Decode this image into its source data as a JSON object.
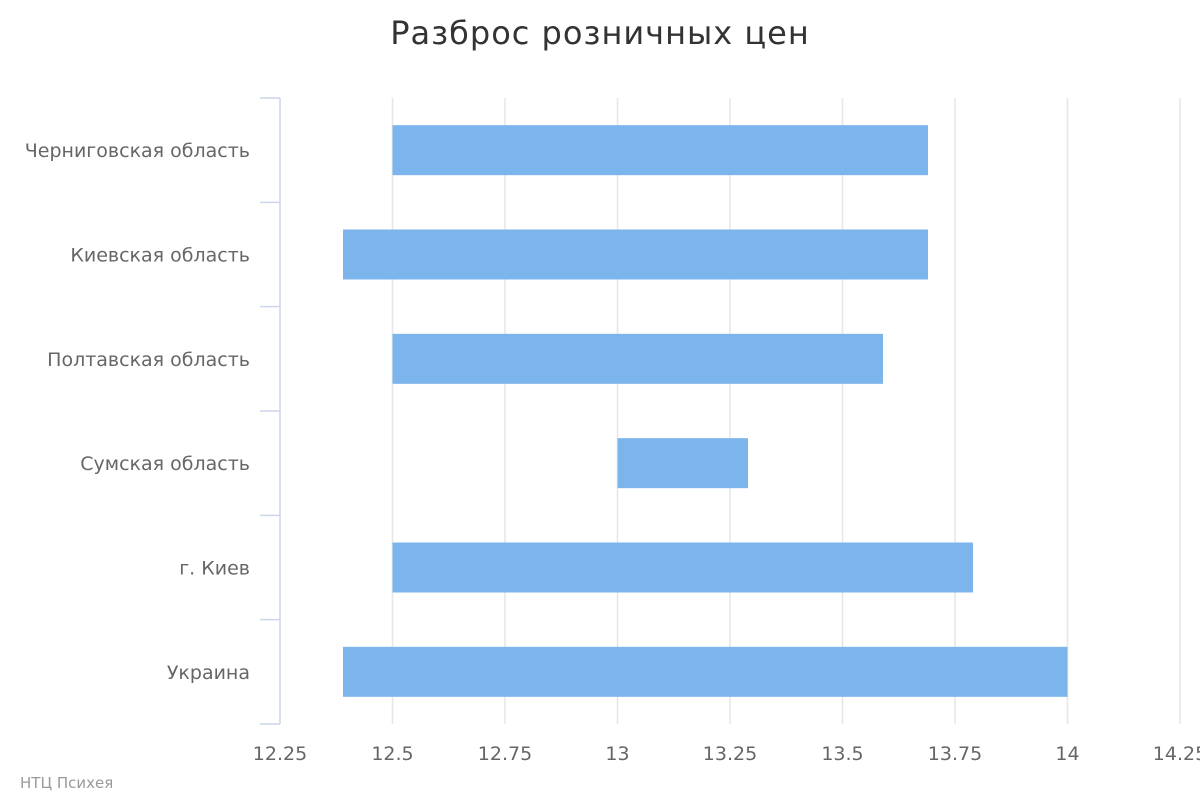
{
  "chart_data": {
    "type": "bar",
    "orientation": "horizontal",
    "title": "Разброс розничных цен",
    "categories": [
      "Черниговская область",
      "Киевская область",
      "Полтавская область",
      "Сумская область",
      "г. Киев",
      "Украина"
    ],
    "series": [
      {
        "ranges": [
          [
            12.5,
            13.69
          ],
          [
            12.39,
            13.69
          ],
          [
            12.5,
            13.59
          ],
          [
            13.0,
            13.29
          ],
          [
            12.5,
            13.79
          ],
          [
            12.39,
            14.0
          ]
        ]
      }
    ],
    "xlim": [
      12.25,
      14.25
    ],
    "ticks": [
      "12.25",
      "12.5",
      "12.75",
      "13",
      "13.25",
      "13.5",
      "13.75",
      "14",
      "14.25"
    ],
    "grid": true,
    "bar_color": "#7cb5ec",
    "grid_color": "#e6e6e6",
    "axis_color": "#ccd6eb"
  },
  "credits": "НТЦ Психея"
}
